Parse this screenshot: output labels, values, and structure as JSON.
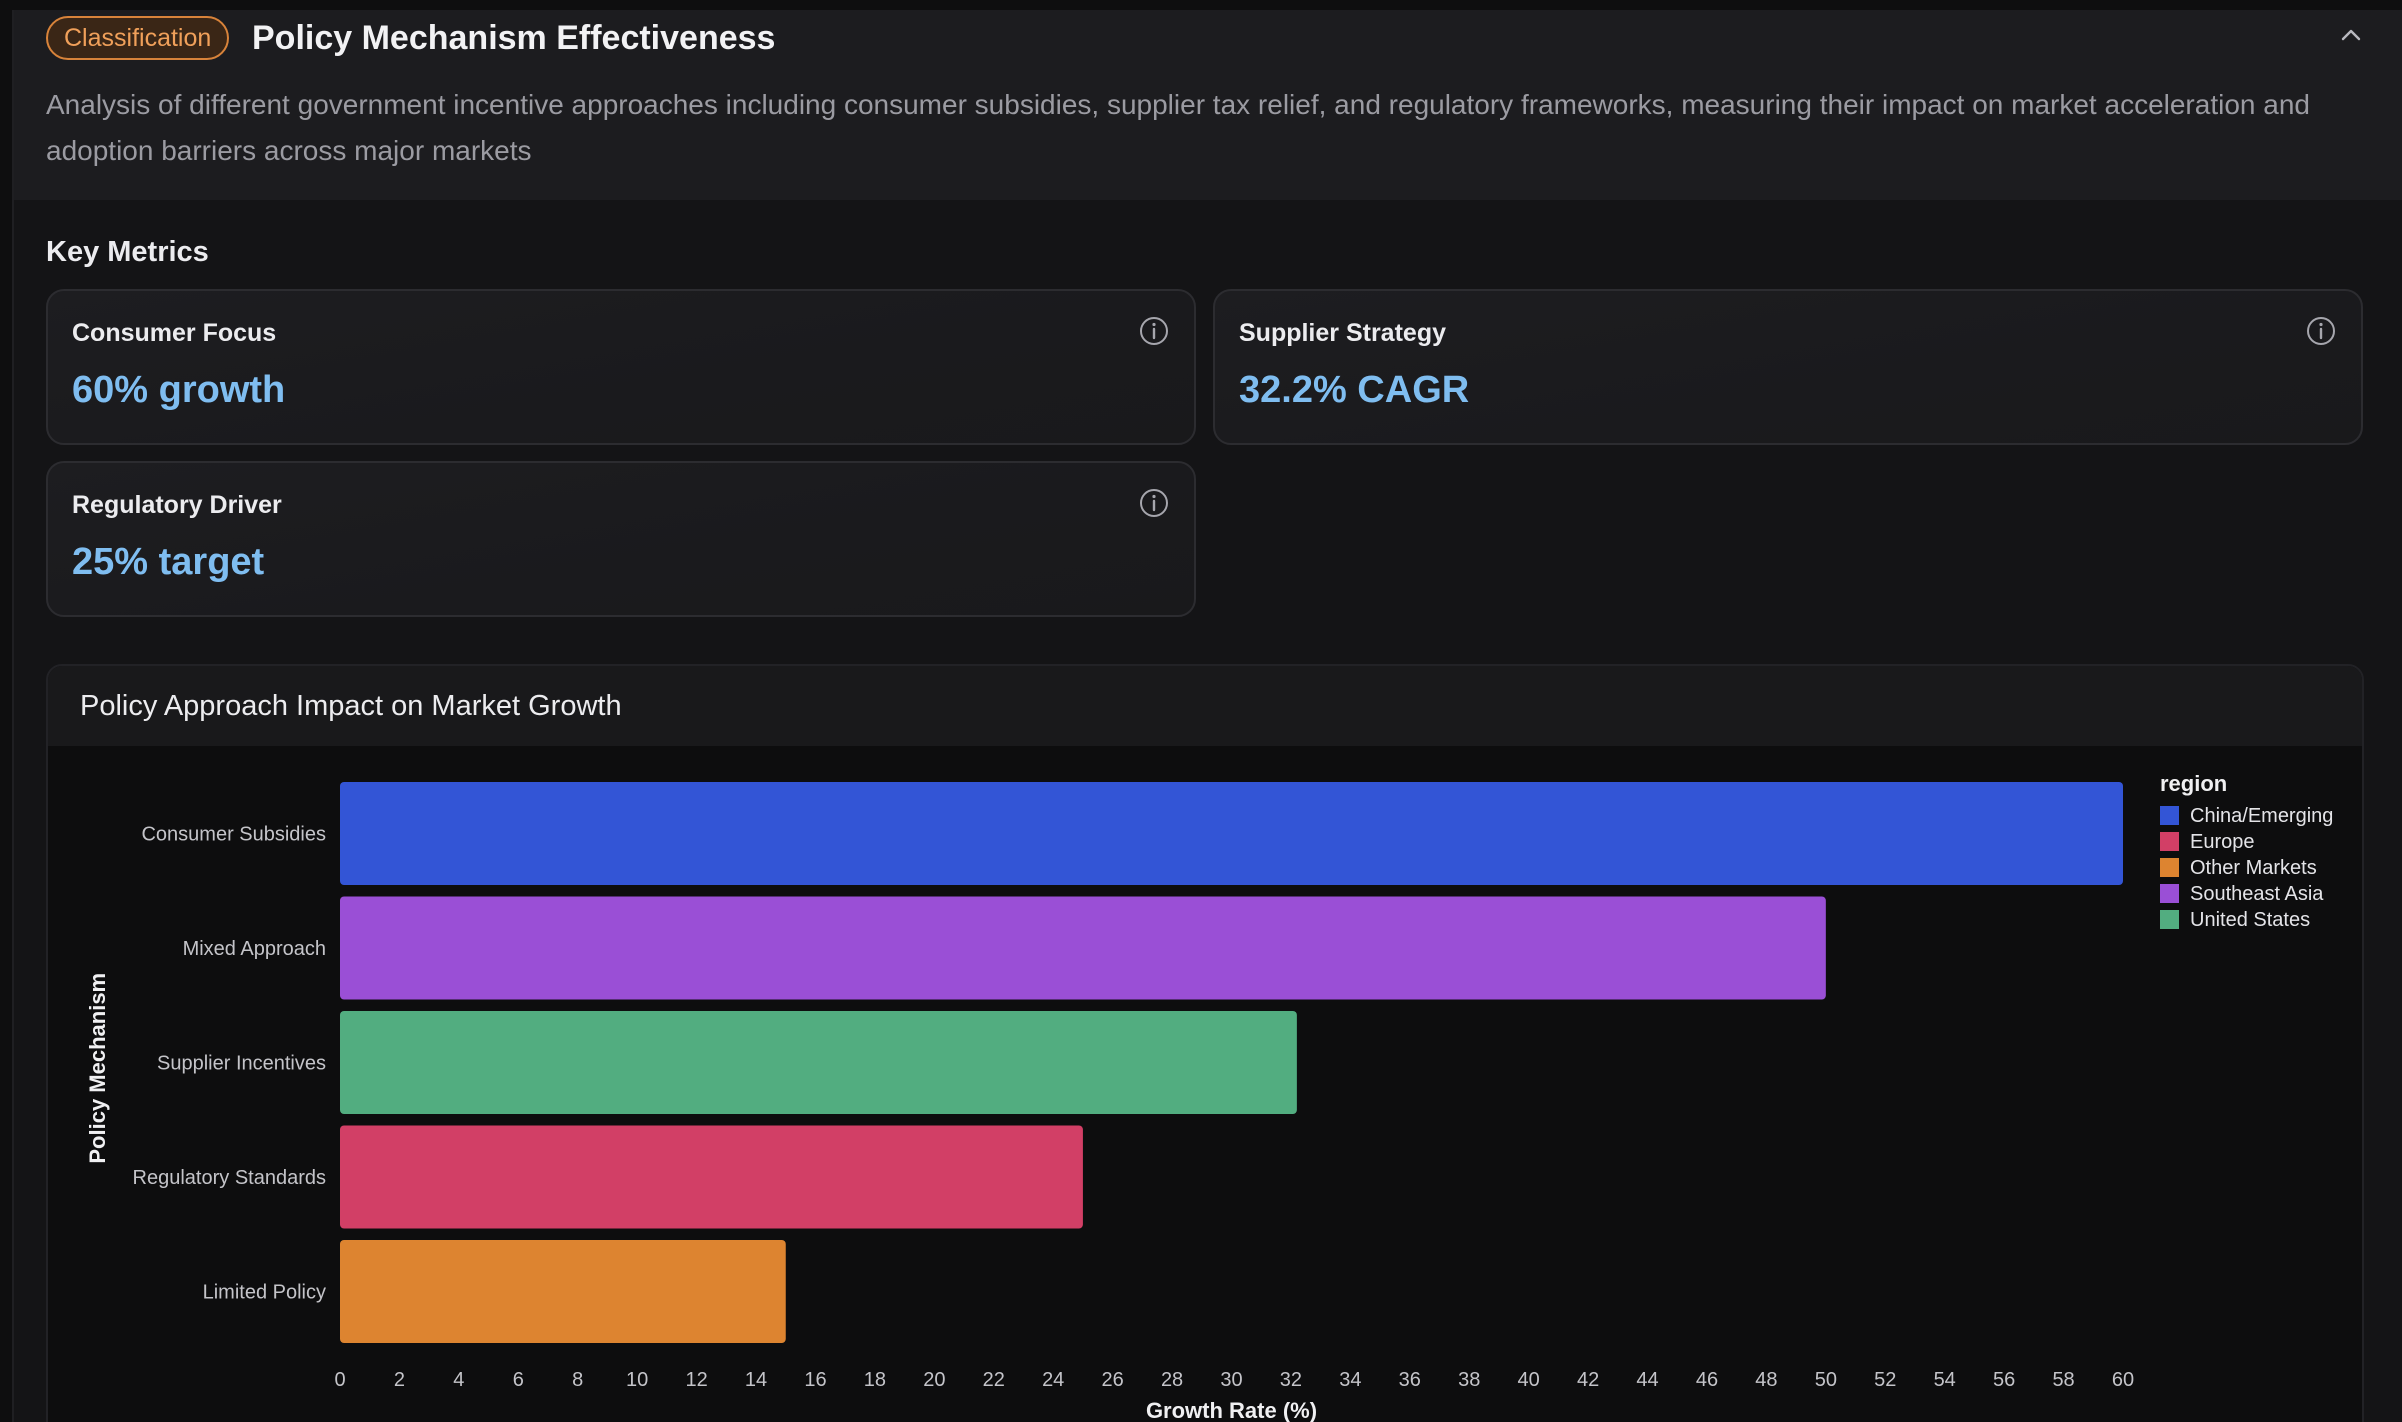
{
  "header": {
    "badge": "Classification",
    "title": "Policy Mechanism Effectiveness",
    "description": "Analysis of different government incentive approaches including consumer subsidies, supplier tax relief, and regulatory frameworks, measuring their impact on market acceleration and adoption barriers across major markets"
  },
  "key_metrics": {
    "title": "Key Metrics",
    "cards": [
      {
        "label": "Consumer Focus",
        "value": "60% growth"
      },
      {
        "label": "Supplier Strategy",
        "value": "32.2% CAGR"
      },
      {
        "label": "Regulatory Driver",
        "value": "25% target"
      }
    ]
  },
  "chart_panel": {
    "title": "Policy Approach Impact on Market Growth"
  },
  "chart_data": {
    "type": "bar",
    "orientation": "horizontal",
    "categories": [
      "Consumer Subsidies",
      "Mixed Approach",
      "Supplier Incentives",
      "Regulatory Standards",
      "Limited Policy"
    ],
    "values": [
      60,
      50,
      32.2,
      25,
      15
    ],
    "bar_series": [
      "China/Emerging",
      "Southeast Asia",
      "United States",
      "Europe",
      "Other Markets"
    ],
    "xlabel": "Growth Rate (%)",
    "ylabel": "Policy Mechanism",
    "xlim": [
      0,
      60
    ],
    "xticks": [
      0,
      2,
      4,
      6,
      8,
      10,
      12,
      14,
      16,
      18,
      20,
      22,
      24,
      26,
      28,
      30,
      32,
      34,
      36,
      38,
      40,
      42,
      44,
      46,
      48,
      50,
      52,
      54,
      56,
      58,
      60
    ],
    "grid": false,
    "legend": {
      "title": "region",
      "placement": "top-right",
      "items": [
        {
          "name": "China/Emerging",
          "color": "#3355d6"
        },
        {
          "name": "Europe",
          "color": "#d23f66"
        },
        {
          "name": "Other Markets",
          "color": "#dd8430"
        },
        {
          "name": "Southeast Asia",
          "color": "#9a4fd6"
        },
        {
          "name": "United States",
          "color": "#52ad80"
        }
      ]
    }
  }
}
